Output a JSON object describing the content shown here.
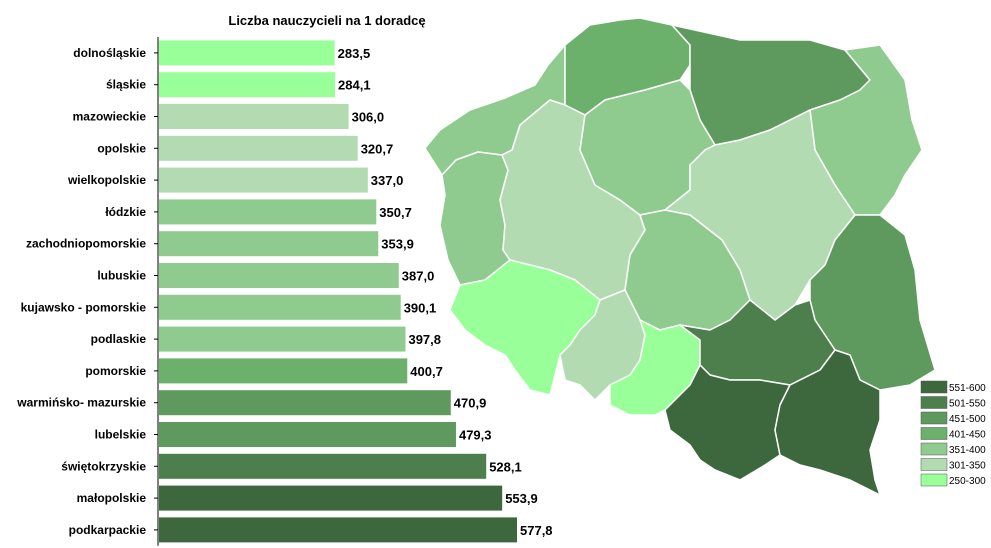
{
  "chart_data": {
    "type": "bar",
    "orientation": "horizontal",
    "title": "Liczba nauczycieli na 1 doradcę",
    "categories": [
      "dolnośląskie",
      "śląskie",
      "mazowieckie",
      "opolskie",
      "wielkopolskie",
      "łódzkie",
      "zachodniopomorskie",
      "lubuskie",
      "kujawsko - pomorskie",
      "podlaskie",
      "pomorskie",
      "warmińsko- mazurskie",
      "lubelskie",
      "świętokrzyskie",
      "małopolskie",
      "podkarpackie"
    ],
    "values": [
      283.5,
      284.1,
      306.0,
      320.7,
      337.0,
      350.7,
      353.9,
      387.0,
      390.1,
      397.8,
      400.7,
      470.9,
      479.3,
      528.1,
      553.9,
      577.8
    ],
    "value_labels": [
      "283,5",
      "284,1",
      "306,0",
      "320,7",
      "337,0",
      "350,7",
      "353,9",
      "387,0",
      "390,1",
      "397,8",
      "400,7",
      "470,9",
      "479,3",
      "528,1",
      "553,9",
      "577,8"
    ],
    "xlim": [
      0,
      577.8
    ],
    "colors": [
      "#99ff99",
      "#99ff99",
      "#b2dbb2",
      "#b2dbb2",
      "#b2dbb2",
      "#8fca8f",
      "#8fca8f",
      "#8fca8f",
      "#8fca8f",
      "#8fca8f",
      "#6bb06b",
      "#5e9a5e",
      "#5e9a5e",
      "#4c7f4c",
      "#3d673d",
      "#3d673d"
    ],
    "grid": false,
    "legend": {
      "placement": "bottom-right",
      "entries": [
        {
          "label": "551-600",
          "color": "#3d673d"
        },
        {
          "label": "501-550",
          "color": "#4c7f4c"
        },
        {
          "label": "451-500",
          "color": "#5e9a5e"
        },
        {
          "label": "401-450",
          "color": "#6bb06b"
        },
        {
          "label": "351-400",
          "color": "#8fca8f"
        },
        {
          "label": "301-350",
          "color": "#b2dbb2"
        },
        {
          "label": "250-300",
          "color": "#99ff99"
        }
      ]
    },
    "map": {
      "regions": [
        {
          "id": "zachodniopomorskie",
          "color": "#8fca8f"
        },
        {
          "id": "pomorskie",
          "color": "#6bb06b"
        },
        {
          "id": "warminsko-mazurskie",
          "color": "#5e9a5e"
        },
        {
          "id": "podlaskie",
          "color": "#8fca8f"
        },
        {
          "id": "lubuskie",
          "color": "#8fca8f"
        },
        {
          "id": "wielkopolskie",
          "color": "#b2dbb2"
        },
        {
          "id": "kujawsko-pomorskie",
          "color": "#8fca8f"
        },
        {
          "id": "mazowieckie",
          "color": "#b2dbb2"
        },
        {
          "id": "lodzkie",
          "color": "#8fca8f"
        },
        {
          "id": "lubelskie",
          "color": "#5e9a5e"
        },
        {
          "id": "dolnoslaskie",
          "color": "#99ff99"
        },
        {
          "id": "opolskie",
          "color": "#b2dbb2"
        },
        {
          "id": "slaskie",
          "color": "#99ff99"
        },
        {
          "id": "swietokrzyskie",
          "color": "#4c7f4c"
        },
        {
          "id": "malopolskie",
          "color": "#3d673d"
        },
        {
          "id": "podkarpackie",
          "color": "#3d673d"
        }
      ]
    }
  }
}
